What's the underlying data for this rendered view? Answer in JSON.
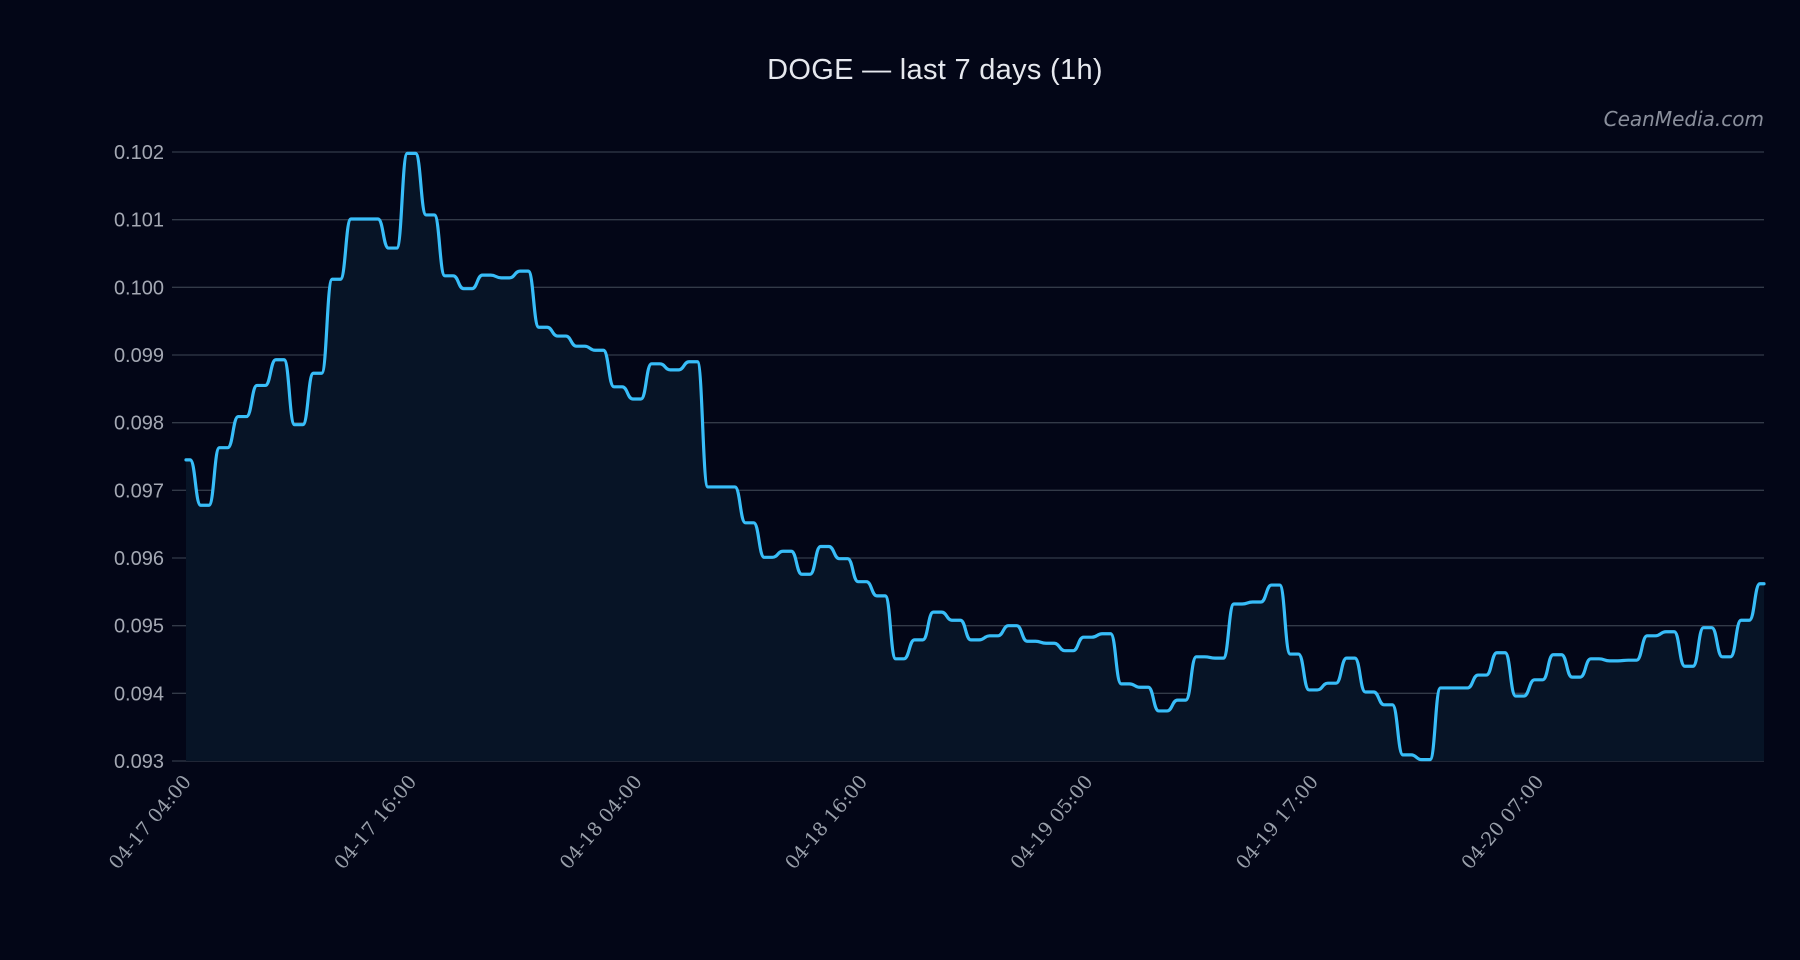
{
  "title": "DOGE — last 7 days (1h)",
  "watermark": "CeanMedia.com",
  "colors": {
    "background": "#030617",
    "plot_fill": "#071426",
    "line": "#38bdf8",
    "grid": "#333a48",
    "tick_text": "#a4a8b3"
  },
  "chart_data": {
    "type": "area",
    "title": "DOGE — last 7 days (1h)",
    "xlabel": "",
    "ylabel": "",
    "ylim": [
      0.093,
      0.102
    ],
    "grid": true,
    "legend": null,
    "y_ticks": [
      "0.093",
      "0.094",
      "0.095",
      "0.096",
      "0.097",
      "0.098",
      "0.099",
      "0.100",
      "0.101",
      "0.102"
    ],
    "x_tick_labels": [
      "04-17 04:00",
      "04-17 16:00",
      "04-18 04:00",
      "04-18 16:00",
      "04-19 05:00",
      "04-19 17:00",
      "04-20 07:00"
    ],
    "x_tick_indices": [
      0,
      12,
      24,
      36,
      48,
      60,
      72
    ],
    "series": [
      {
        "name": "DOGE",
        "values": [
          0.09745,
          0.09678,
          0.09763,
          0.09809,
          0.09855,
          0.09893,
          0.09797,
          0.09873,
          0.10012,
          0.10101,
          0.10101,
          0.10058,
          0.10198,
          0.10107,
          0.10017,
          0.09998,
          0.10018,
          0.10014,
          0.10024,
          0.09941,
          0.09928,
          0.09913,
          0.09907,
          0.09853,
          0.09835,
          0.09887,
          0.09878,
          0.0989,
          0.09705,
          0.09705,
          0.09652,
          0.09601,
          0.0961,
          0.09576,
          0.09617,
          0.09599,
          0.09565,
          0.09544,
          0.09451,
          0.09479,
          0.0952,
          0.09508,
          0.09479,
          0.09485,
          0.095,
          0.09477,
          0.09474,
          0.09463,
          0.09483,
          0.09488,
          0.09414,
          0.09409,
          0.09374,
          0.0939,
          0.09454,
          0.09452,
          0.09532,
          0.09535,
          0.0956,
          0.09458,
          0.09405,
          0.09415,
          0.09452,
          0.09402,
          0.09383,
          0.09309,
          0.09302,
          0.09408,
          0.09408,
          0.09427,
          0.0946,
          0.09396,
          0.0942,
          0.09457,
          0.09424,
          0.09451,
          0.09448,
          0.09449,
          0.09485,
          0.09491,
          0.0944,
          0.09497,
          0.09454,
          0.09508,
          0.09562
        ]
      }
    ]
  }
}
